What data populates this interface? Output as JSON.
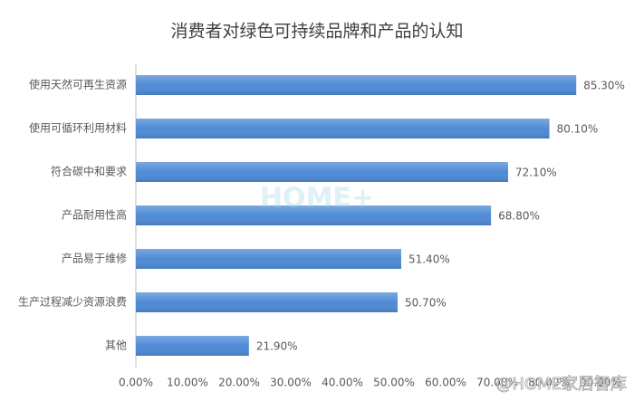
{
  "chart_data": {
    "type": "bar",
    "orientation": "horizontal",
    "title": "消费者对绿色可持续品牌和产品的认知",
    "categories": [
      "使用天然可再生资源",
      "使用可循环利用材料",
      "符合碳中和要求",
      "产品耐用性高",
      "产品易于维修",
      "生产过程减少资源浪费",
      "其他"
    ],
    "values": [
      85.3,
      80.1,
      72.1,
      68.8,
      51.4,
      50.7,
      21.9
    ],
    "value_labels": [
      "85.30%",
      "80.10%",
      "72.10%",
      "68.80%",
      "51.40%",
      "50.70%",
      "21.90%"
    ],
    "color": "#4f8bd6",
    "xlim": [
      0,
      90
    ],
    "xticks": [
      {
        "value": 0,
        "label": "0.00%"
      },
      {
        "value": 10,
        "label": "10.00%"
      },
      {
        "value": 20,
        "label": "20.00%"
      },
      {
        "value": 30,
        "label": "30.00%"
      },
      {
        "value": 40,
        "label": "40.00%"
      },
      {
        "value": 50,
        "label": "50.00%"
      },
      {
        "value": 60,
        "label": "60.00%"
      },
      {
        "value": 70,
        "label": "70.00%"
      },
      {
        "value": 80,
        "label": "80.00%"
      },
      {
        "value": 90,
        "label": "90.00%"
      }
    ],
    "grid": false,
    "watermarks": [
      "HOME+",
      "@HOME家居智库"
    ]
  }
}
